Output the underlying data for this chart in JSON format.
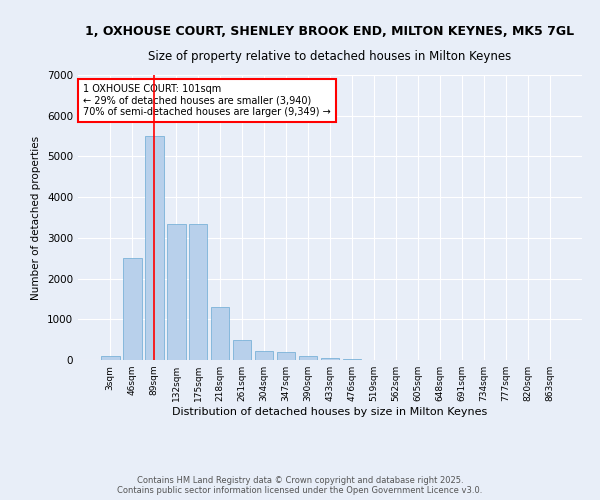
{
  "title_line1": "1, OXHOUSE COURT, SHENLEY BROOK END, MILTON KEYNES, MK5 7GL",
  "title_line2": "Size of property relative to detached houses in Milton Keynes",
  "xlabel": "Distribution of detached houses by size in Milton Keynes",
  "ylabel": "Number of detached properties",
  "categories": [
    "3sqm",
    "46sqm",
    "89sqm",
    "132sqm",
    "175sqm",
    "218sqm",
    "261sqm",
    "304sqm",
    "347sqm",
    "390sqm",
    "433sqm",
    "476sqm",
    "519sqm",
    "562sqm",
    "605sqm",
    "648sqm",
    "691sqm",
    "734sqm",
    "777sqm",
    "820sqm",
    "863sqm"
  ],
  "values": [
    100,
    2500,
    5500,
    3350,
    3350,
    1300,
    480,
    220,
    190,
    90,
    45,
    25,
    5,
    2,
    1,
    1,
    0,
    0,
    0,
    0,
    0
  ],
  "bar_color": "#b8d0eb",
  "bar_edgecolor": "#6aaad4",
  "vline_color": "red",
  "annotation_title": "1 OXHOUSE COURT: 101sqm",
  "annotation_line2": "← 29% of detached houses are smaller (3,940)",
  "annotation_line3": "70% of semi-detached houses are larger (9,349) →",
  "annotation_box_color": "red",
  "annotation_bg": "white",
  "ylim": [
    0,
    7000
  ],
  "yticks": [
    0,
    1000,
    2000,
    3000,
    4000,
    5000,
    6000,
    7000
  ],
  "footer_line1": "Contains HM Land Registry data © Crown copyright and database right 2025.",
  "footer_line2": "Contains public sector information licensed under the Open Government Licence v3.0.",
  "bg_color": "#e8eef8",
  "grid_color": "white",
  "title_fontsize": 9,
  "subtitle_fontsize": 8.5
}
